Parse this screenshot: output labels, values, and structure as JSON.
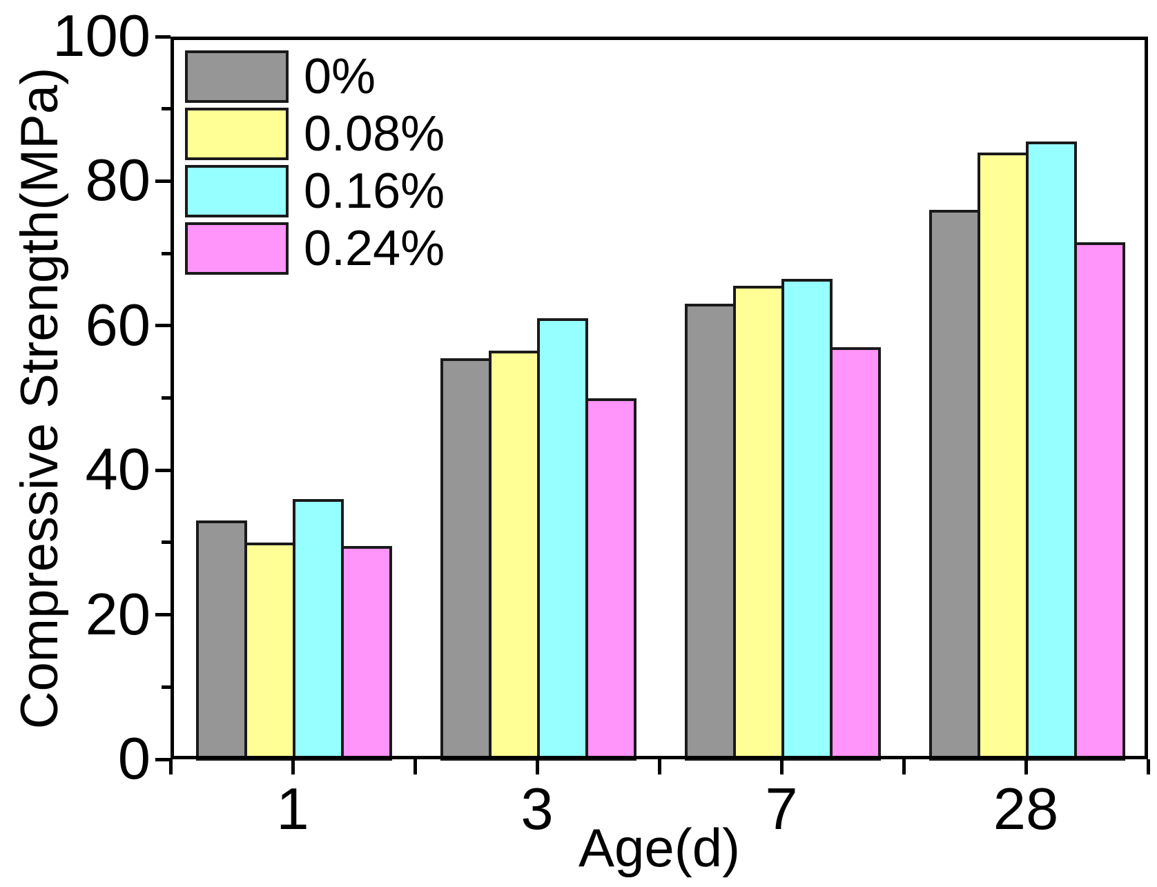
{
  "chart_data": {
    "type": "bar",
    "title": "",
    "xlabel": "Age(d)",
    "ylabel": "Compressive Strength(MPa)",
    "categories": [
      "1",
      "3",
      "7",
      "28"
    ],
    "series": [
      {
        "name": "0%",
        "color": "#969696",
        "values": [
          33,
          55.5,
          63,
          76
        ]
      },
      {
        "name": "0.08%",
        "color": "#FFFF96",
        "values": [
          30,
          56.5,
          65.5,
          84
        ]
      },
      {
        "name": "0.16%",
        "color": "#96FFFF",
        "values": [
          36,
          61,
          66.5,
          85.5
        ]
      },
      {
        "name": "0.24%",
        "color": "#FF94FA",
        "values": [
          29.5,
          50,
          57,
          71.5
        ]
      }
    ],
    "ylim": [
      0,
      100
    ],
    "y_major_ticks": [
      0,
      20,
      40,
      60,
      80,
      100
    ],
    "y_minor_ticks": [
      10,
      30,
      50,
      70,
      90
    ],
    "legend_position": "top-left-inside",
    "grid": false,
    "bar_border_color": "#1a1a1a",
    "axis_color": "#000000"
  }
}
